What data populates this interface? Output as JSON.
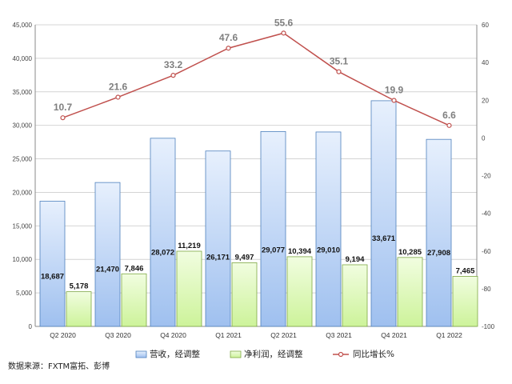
{
  "chart_data": {
    "type": "bar",
    "categories": [
      "Q2 2020",
      "Q3 2020",
      "Q4 2020",
      "Q1 2021",
      "Q2 2021",
      "Q3 2021",
      "Q4 2021",
      "Q1 2022"
    ],
    "series": [
      {
        "name": "营收，经调整",
        "type": "bar",
        "axis": "left",
        "values": [
          18687,
          21470,
          28072,
          26171,
          29077,
          29010,
          33671,
          27908
        ],
        "labels": [
          "18,687",
          "21,470",
          "28,072",
          "26,171",
          "29,077",
          "29,010",
          "33,671",
          "27,908"
        ],
        "color": "#a9c8f2"
      },
      {
        "name": "净利润，经调整",
        "type": "bar",
        "axis": "left",
        "values": [
          5178,
          7846,
          11219,
          9497,
          10394,
          9194,
          10285,
          7465
        ],
        "labels": [
          "5,178",
          "7,846",
          "11,219",
          "9,497",
          "10,394",
          "9,194",
          "10,285",
          "7,465"
        ],
        "color": "#d9f7a8"
      },
      {
        "name": "同比增长%",
        "type": "line",
        "axis": "right",
        "values": [
          10.7,
          21.6,
          33.2,
          47.6,
          55.6,
          35.1,
          19.9,
          6.6
        ],
        "labels": [
          "10.7",
          "21.6",
          "33.2",
          "47.6",
          "55.6",
          "35.1",
          "19.9",
          "6.6"
        ],
        "color": "#c0504d"
      }
    ],
    "left_axis": {
      "ylim": [
        0,
        45000
      ],
      "ticks": [
        0,
        5000,
        10000,
        15000,
        20000,
        25000,
        30000,
        35000,
        40000,
        45000
      ],
      "tick_labels": [
        "0",
        "5,000",
        "10,000",
        "15,000",
        "20,000",
        "25,000",
        "30,000",
        "35,000",
        "40,000",
        "45,000"
      ]
    },
    "right_axis": {
      "ylim": [
        -100,
        60
      ],
      "ticks": [
        -100,
        -80,
        -60,
        -40,
        -20,
        0,
        20,
        40,
        60
      ],
      "tick_labels": [
        "-100",
        "-80",
        "-60",
        "-40",
        "-20",
        "0",
        "20",
        "40",
        "60"
      ]
    },
    "grid": true,
    "legend": "bottom",
    "source": "数据来源：FXTM富拓、彭博"
  }
}
